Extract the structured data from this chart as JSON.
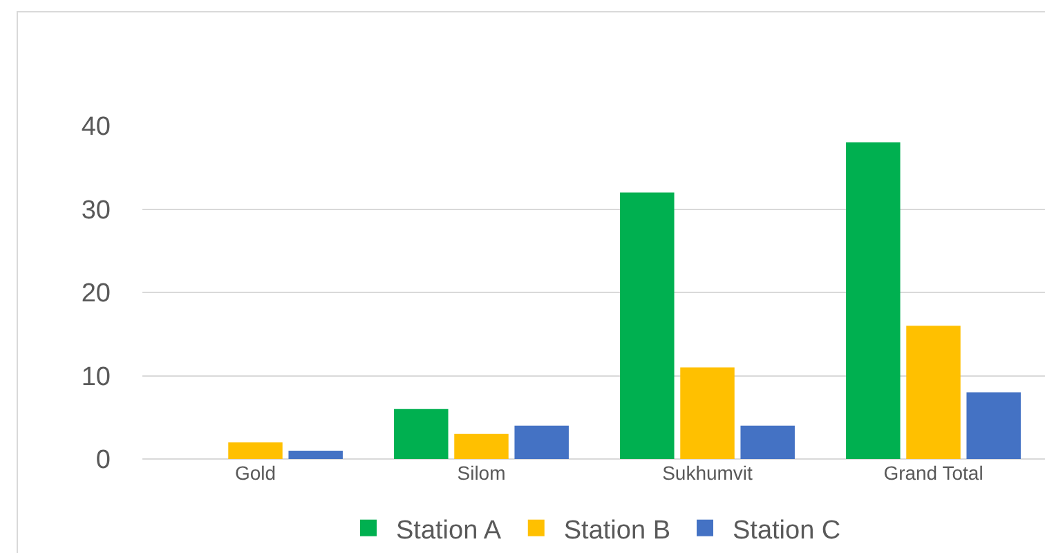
{
  "chart_data": {
    "type": "bar",
    "categories": [
      "Gold",
      "Silom",
      "Sukhumvit",
      "Grand Total"
    ],
    "series": [
      {
        "name": "Station A",
        "color": "#00b050",
        "values": [
          0,
          6,
          32,
          38
        ]
      },
      {
        "name": "Station B",
        "color": "#ffc000",
        "values": [
          2,
          3,
          11,
          16
        ]
      },
      {
        "name": "Station C",
        "color": "#4472c4",
        "values": [
          1,
          4,
          4,
          8
        ]
      }
    ],
    "ylim": [
      0,
      40
    ],
    "yticks": [
      0,
      10,
      20,
      30,
      40
    ],
    "grid": "y",
    "legend": "bottom"
  }
}
